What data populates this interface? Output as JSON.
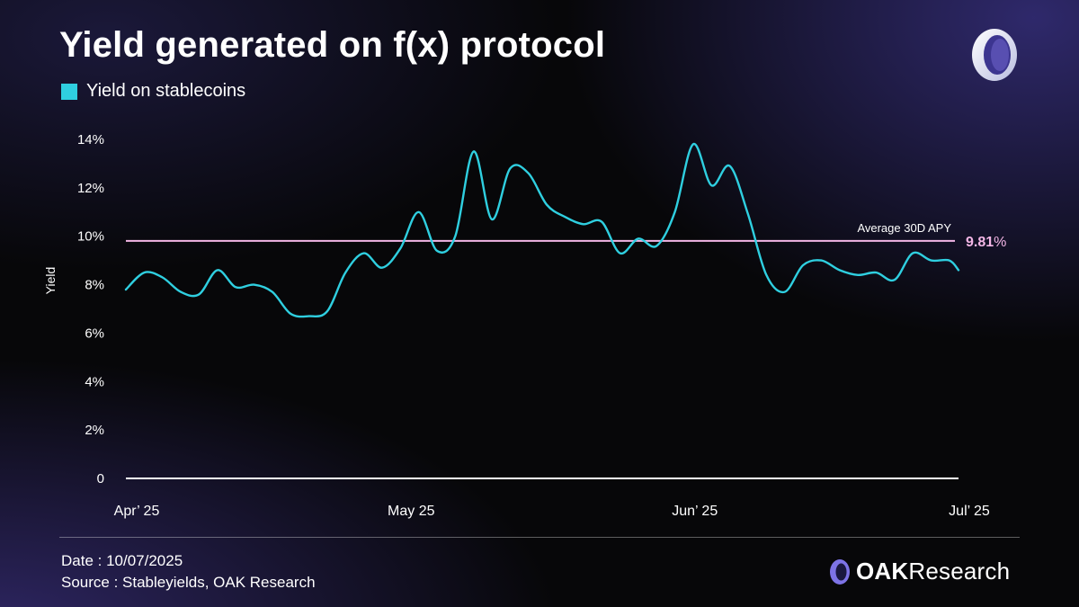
{
  "header": {
    "title": "Yield generated on f(x) protocol",
    "logo_icon": "oak-ring-logo"
  },
  "legend": {
    "label": "Yield on stablecoins",
    "color": "#2fcfe0"
  },
  "footer": {
    "date": "Date : 10/07/2025",
    "source": "Source : Stableyields, OAK Research",
    "brand_icon": "oak-ring-logo",
    "brand_bold": "OAK",
    "brand_light": "Research"
  },
  "chart_data": {
    "type": "line",
    "title": "Yield generated on f(x) protocol",
    "ylabel": "Yield",
    "xlabel": "",
    "ylim": [
      0,
      14
    ],
    "xlim": [
      0,
      91
    ],
    "y_ticks": [
      {
        "value": 14,
        "label": "14%"
      },
      {
        "value": 12,
        "label": "12%"
      },
      {
        "value": 10,
        "label": "10%"
      },
      {
        "value": 8,
        "label": "8%"
      },
      {
        "value": 6,
        "label": "6%"
      },
      {
        "value": 4,
        "label": "4%"
      },
      {
        "value": 2,
        "label": "2%"
      },
      {
        "value": 0,
        "label": "0"
      }
    ],
    "x_ticks": [
      {
        "value": 0,
        "label": "Apr’ 25"
      },
      {
        "value": 30,
        "label": "May 25"
      },
      {
        "value": 61,
        "label": "Jun’ 25"
      },
      {
        "value": 91,
        "label": "Jul’ 25"
      }
    ],
    "grid": false,
    "legend_position": "top-left",
    "series": [
      {
        "name": "Yield on stablecoins",
        "color": "#2fcfe0",
        "x": [
          0,
          2,
          4,
          6,
          8,
          10,
          12,
          14,
          16,
          18,
          20,
          22,
          24,
          26,
          28,
          30,
          32,
          34,
          36,
          38,
          40,
          42,
          44,
          46,
          48,
          50,
          52,
          54,
          56,
          58,
          60,
          62,
          64,
          66,
          68,
          70,
          72,
          74,
          76,
          78,
          80,
          82,
          84,
          86,
          88,
          90,
          91
        ],
        "values": [
          7.8,
          8.5,
          8.3,
          7.7,
          7.6,
          8.6,
          7.9,
          8.0,
          7.7,
          6.8,
          6.7,
          6.9,
          8.5,
          9.3,
          8.7,
          9.5,
          11.0,
          9.4,
          10.0,
          13.5,
          10.7,
          12.8,
          12.6,
          11.3,
          10.8,
          10.5,
          10.6,
          9.3,
          9.9,
          9.6,
          11.0,
          13.8,
          12.1,
          12.9,
          10.9,
          8.4,
          7.7,
          8.8,
          9.0,
          8.6,
          8.4,
          8.5,
          8.2,
          9.3,
          9.0,
          9.0,
          8.6
        ]
      }
    ],
    "reference_line": {
      "label": "Average 30D APY",
      "value": 9.81,
      "value_label_bold": "9.81",
      "value_label_unit": "%",
      "color": "#f3b6e6"
    }
  }
}
